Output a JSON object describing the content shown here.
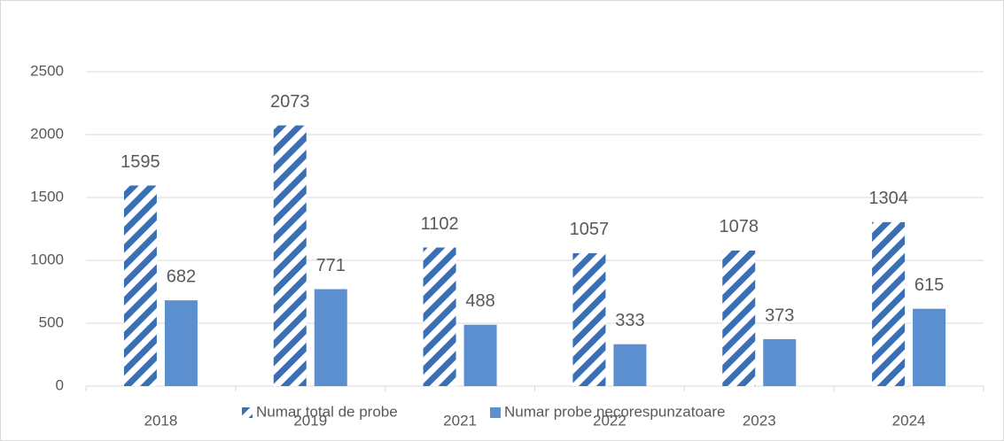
{
  "chart_data": {
    "type": "bar",
    "categories": [
      "2018",
      "2019",
      "2021",
      "2022",
      "2023",
      "2024"
    ],
    "series": [
      {
        "name": "Numar total de probe",
        "color": "#3a6fb5",
        "pattern": "hatch",
        "values": [
          1595,
          2073,
          1102,
          1057,
          1078,
          1304
        ]
      },
      {
        "name": "Numar probe necorespunzatoare",
        "color": "#5b8fd0",
        "values": [
          682,
          771,
          488,
          333,
          373,
          615
        ]
      }
    ],
    "ylim": [
      0,
      2500
    ],
    "yticks": [
      0,
      500,
      1000,
      1500,
      2000,
      2500
    ],
    "grid": true,
    "legend": "bottom"
  }
}
